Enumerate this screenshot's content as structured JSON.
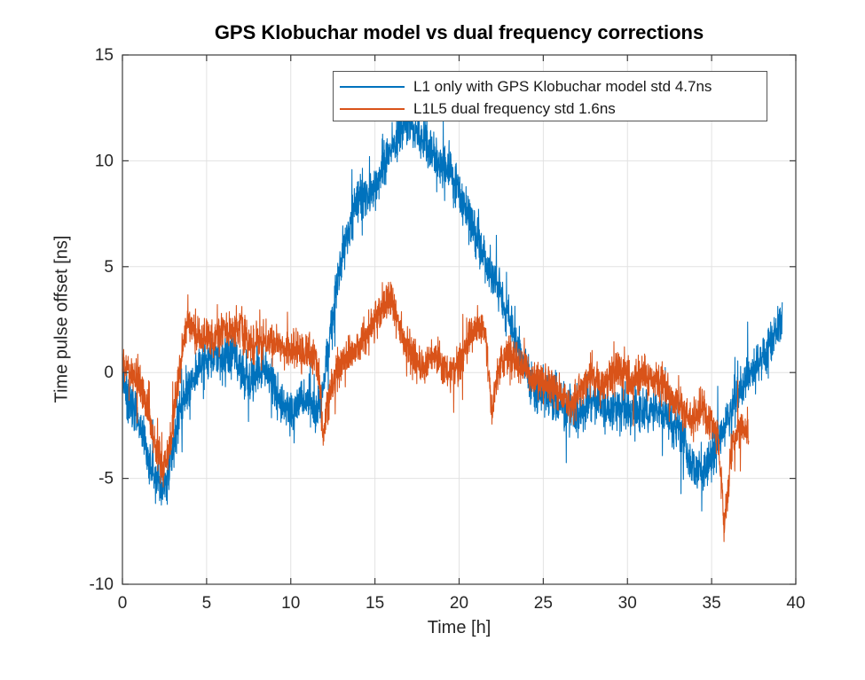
{
  "figure": {
    "background": "#ffffff"
  },
  "chart_data": {
    "type": "line",
    "title": "GPS Klobuchar model vs dual frequency corrections",
    "xlabel": "Time [h]",
    "ylabel": "Time pulse offset [ns]",
    "xlim": [
      0,
      40
    ],
    "ylim": [
      -10,
      15
    ],
    "xticks": [
      0,
      5,
      10,
      15,
      20,
      25,
      30,
      35,
      40
    ],
    "yticks": [
      -10,
      -5,
      0,
      5,
      10,
      15
    ],
    "grid": true,
    "legend_position": "top-inside",
    "colors": {
      "l1": "#0072BD",
      "l1l5": "#D95319",
      "grid": "#e2e2e2",
      "axis": "#3c3c3c",
      "tick_text": "#262626"
    },
    "series": [
      {
        "name": "L1 only with GPS Klobuchar model std 4.7ns",
        "color_key": "l1",
        "noise_band": 1.5,
        "anchors": [
          [
            0,
            -0.3
          ],
          [
            0.4,
            -1.3
          ],
          [
            0.8,
            -2.0
          ],
          [
            1.2,
            -2.8
          ],
          [
            1.6,
            -4.0
          ],
          [
            2.0,
            -5.0
          ],
          [
            2.3,
            -5.3
          ],
          [
            2.6,
            -5.0
          ],
          [
            2.9,
            -4.0
          ],
          [
            3.2,
            -2.7
          ],
          [
            3.5,
            -1.5
          ],
          [
            3.9,
            -0.8
          ],
          [
            4.3,
            -0.1
          ],
          [
            4.7,
            0.4
          ],
          [
            5.1,
            0.6
          ],
          [
            5.5,
            0.8
          ],
          [
            5.9,
            0.6
          ],
          [
            6.3,
            0.8
          ],
          [
            6.7,
            0.7
          ],
          [
            7.1,
            0.1
          ],
          [
            7.5,
            -0.4
          ],
          [
            7.9,
            -0.2
          ],
          [
            8.3,
            0.3
          ],
          [
            8.7,
            -0.1
          ],
          [
            9.1,
            -0.8
          ],
          [
            9.5,
            -1.6
          ],
          [
            9.9,
            -2.0
          ],
          [
            10.3,
            -1.6
          ],
          [
            10.7,
            -1.2
          ],
          [
            11.1,
            -1.3
          ],
          [
            11.5,
            -1.7
          ],
          [
            11.8,
            -1.5
          ],
          [
            12.0,
            -0.3
          ],
          [
            12.3,
            1.8
          ],
          [
            12.6,
            3.4
          ],
          [
            12.9,
            4.8
          ],
          [
            13.2,
            5.9
          ],
          [
            13.5,
            6.9
          ],
          [
            13.8,
            7.7
          ],
          [
            14.1,
            8.3
          ],
          [
            14.4,
            8.6
          ],
          [
            14.7,
            8.4
          ],
          [
            15.0,
            8.7
          ],
          [
            15.3,
            9.4
          ],
          [
            15.6,
            10.1
          ],
          [
            15.9,
            10.5
          ],
          [
            16.2,
            11.0
          ],
          [
            16.5,
            11.4
          ],
          [
            16.8,
            11.6
          ],
          [
            17.1,
            11.6
          ],
          [
            17.4,
            11.4
          ],
          [
            17.7,
            11.2
          ],
          [
            18.0,
            10.9
          ],
          [
            18.3,
            10.5
          ],
          [
            18.6,
            10.2
          ],
          [
            18.9,
            9.8
          ],
          [
            19.2,
            9.6
          ],
          [
            19.5,
            9.6
          ],
          [
            19.8,
            8.9
          ],
          [
            20.1,
            8.1
          ],
          [
            20.4,
            7.6
          ],
          [
            20.7,
            7.0
          ],
          [
            21.0,
            6.4
          ],
          [
            21.4,
            5.5
          ],
          [
            21.8,
            4.9
          ],
          [
            22.2,
            4.2
          ],
          [
            22.6,
            3.3
          ],
          [
            23.0,
            2.4
          ],
          [
            23.4,
            1.4
          ],
          [
            23.8,
            0.5
          ],
          [
            24.2,
            -0.4
          ],
          [
            24.6,
            -1.0
          ],
          [
            25.0,
            -0.8
          ],
          [
            25.4,
            -1.1
          ],
          [
            25.8,
            -1.3
          ],
          [
            26.2,
            -1.5
          ],
          [
            26.6,
            -1.9
          ],
          [
            27.0,
            -2.2
          ],
          [
            27.4,
            -1.8
          ],
          [
            27.8,
            -1.2
          ],
          [
            28.2,
            -1.5
          ],
          [
            28.6,
            -1.7
          ],
          [
            29.0,
            -1.8
          ],
          [
            29.4,
            -1.5
          ],
          [
            29.8,
            -1.7
          ],
          [
            30.2,
            -1.9
          ],
          [
            30.6,
            -1.6
          ],
          [
            31.0,
            -1.7
          ],
          [
            31.4,
            -1.9
          ],
          [
            31.8,
            -1.7
          ],
          [
            32.2,
            -2.0
          ],
          [
            32.6,
            -2.4
          ],
          [
            33.0,
            -2.8
          ],
          [
            33.4,
            -3.4
          ],
          [
            33.8,
            -4.1
          ],
          [
            34.2,
            -4.6
          ],
          [
            34.5,
            -4.8
          ],
          [
            34.8,
            -4.3
          ],
          [
            35.1,
            -3.6
          ],
          [
            35.4,
            -3.0
          ],
          [
            35.7,
            -2.7
          ],
          [
            36.0,
            -2.2
          ],
          [
            36.3,
            -1.5
          ],
          [
            36.6,
            -1.0
          ],
          [
            36.9,
            -0.6
          ],
          [
            37.2,
            -0.2
          ],
          [
            37.5,
            0.2
          ],
          [
            37.8,
            0.5
          ],
          [
            38.1,
            0.9
          ],
          [
            38.5,
            1.4
          ],
          [
            38.9,
            2.0
          ],
          [
            39.2,
            2.5
          ]
        ]
      },
      {
        "name": "L1L5 dual frequency std 1.6ns",
        "color_key": "l1l5",
        "noise_band": 1.35,
        "anchors": [
          [
            0,
            0.6
          ],
          [
            0.3,
            0.3
          ],
          [
            0.6,
            -0.3
          ],
          [
            0.9,
            -0.3
          ],
          [
            1.2,
            -0.9
          ],
          [
            1.5,
            -1.8
          ],
          [
            1.8,
            -2.8
          ],
          [
            2.1,
            -3.8
          ],
          [
            2.4,
            -4.6
          ],
          [
            2.7,
            -3.8
          ],
          [
            3.0,
            -2.2
          ],
          [
            3.3,
            -0.5
          ],
          [
            3.6,
            1.2
          ],
          [
            3.9,
            2.4
          ],
          [
            4.2,
            2.0
          ],
          [
            4.6,
            1.6
          ],
          [
            5.0,
            1.8
          ],
          [
            5.4,
            1.4
          ],
          [
            5.8,
            1.7
          ],
          [
            6.2,
            2.1
          ],
          [
            6.6,
            1.9
          ],
          [
            7.0,
            2.2
          ],
          [
            7.4,
            1.7
          ],
          [
            7.8,
            1.3
          ],
          [
            8.2,
            1.5
          ],
          [
            8.6,
            1.3
          ],
          [
            9.0,
            1.6
          ],
          [
            9.4,
            1.2
          ],
          [
            9.8,
            1.1
          ],
          [
            10.2,
            1.2
          ],
          [
            10.6,
            0.9
          ],
          [
            11.0,
            1.0
          ],
          [
            11.4,
            0.8
          ],
          [
            11.7,
            -0.1
          ],
          [
            11.9,
            -2.9
          ],
          [
            12.1,
            -1.9
          ],
          [
            12.4,
            -0.8
          ],
          [
            12.7,
            -0.2
          ],
          [
            13.0,
            0.3
          ],
          [
            13.4,
            0.8
          ],
          [
            13.8,
            1.2
          ],
          [
            14.2,
            1.5
          ],
          [
            14.6,
            1.9
          ],
          [
            15.0,
            2.4
          ],
          [
            15.4,
            2.9
          ],
          [
            15.7,
            3.4
          ],
          [
            15.9,
            3.6
          ],
          [
            16.1,
            3.1
          ],
          [
            16.4,
            2.3
          ],
          [
            16.7,
            1.7
          ],
          [
            17.0,
            1.2
          ],
          [
            17.3,
            0.8
          ],
          [
            17.6,
            0.4
          ],
          [
            17.9,
            0.3
          ],
          [
            18.2,
            0.6
          ],
          [
            18.5,
            0.9
          ],
          [
            18.8,
            0.7
          ],
          [
            19.1,
            0.3
          ],
          [
            19.4,
            0.1
          ],
          [
            19.7,
            0.2
          ],
          [
            20.0,
            0.4
          ],
          [
            20.3,
            0.7
          ],
          [
            20.6,
            1.9
          ],
          [
            21.0,
            2.1
          ],
          [
            21.4,
            2.1
          ],
          [
            21.6,
            1.4
          ],
          [
            21.8,
            -0.5
          ],
          [
            21.95,
            -1.8
          ],
          [
            22.1,
            -0.9
          ],
          [
            22.4,
            0.2
          ],
          [
            22.7,
            0.7
          ],
          [
            23.0,
            0.9
          ],
          [
            23.3,
            0.6
          ],
          [
            23.6,
            0.3
          ],
          [
            23.9,
            0.1
          ],
          [
            24.2,
            -0.2
          ],
          [
            24.5,
            -0.4
          ],
          [
            24.8,
            -0.3
          ],
          [
            25.1,
            -0.6
          ],
          [
            25.4,
            -0.5
          ],
          [
            25.7,
            -0.8
          ],
          [
            26.0,
            -1.0
          ],
          [
            26.3,
            -1.3
          ],
          [
            26.6,
            -1.6
          ],
          [
            26.9,
            -1.3
          ],
          [
            27.2,
            -0.8
          ],
          [
            27.5,
            -0.4
          ],
          [
            27.8,
            -0.2
          ],
          [
            28.1,
            -0.5
          ],
          [
            28.4,
            -0.7
          ],
          [
            28.7,
            -0.4
          ],
          [
            29.0,
            -0.3
          ],
          [
            29.3,
            0.0
          ],
          [
            29.6,
            0.2
          ],
          [
            29.9,
            -0.1
          ],
          [
            30.2,
            -0.4
          ],
          [
            30.5,
            -0.2
          ],
          [
            30.8,
            0.0
          ],
          [
            31.1,
            -0.2
          ],
          [
            31.4,
            -0.4
          ],
          [
            31.7,
            -0.2
          ],
          [
            32.0,
            -0.5
          ],
          [
            32.3,
            -0.8
          ],
          [
            32.6,
            -1.1
          ],
          [
            32.9,
            -1.4
          ],
          [
            33.2,
            -1.7
          ],
          [
            33.5,
            -2.0
          ],
          [
            33.8,
            -2.2
          ],
          [
            34.1,
            -2.0
          ],
          [
            34.4,
            -1.8
          ],
          [
            34.7,
            -2.0
          ],
          [
            35.0,
            -2.3
          ],
          [
            35.2,
            -2.6
          ],
          [
            35.4,
            -3.2
          ],
          [
            35.6,
            -5.0
          ],
          [
            35.75,
            -7.7
          ],
          [
            35.9,
            -6.2
          ],
          [
            36.1,
            -4.3
          ],
          [
            36.3,
            -3.2
          ],
          [
            36.6,
            -2.7
          ],
          [
            36.9,
            -2.5
          ],
          [
            37.2,
            -3.1
          ]
        ]
      }
    ]
  },
  "legend": {
    "items": [
      {
        "label": "L1 only with GPS Klobuchar model std 4.7ns"
      },
      {
        "label": "L1L5 dual frequency std 1.6ns"
      }
    ]
  }
}
